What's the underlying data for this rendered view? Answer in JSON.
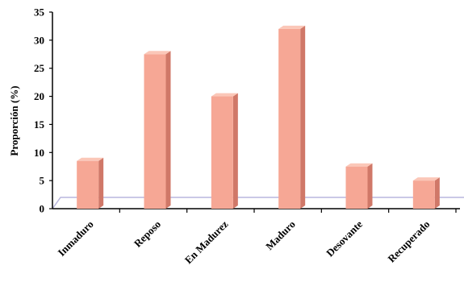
{
  "chart_data": {
    "type": "bar",
    "title": "",
    "xlabel": "",
    "ylabel": "Proporción (%)",
    "categories": [
      "Inmaduro",
      "Reposo",
      "En Madurez",
      "Maduro",
      "Desovante",
      "Recuperado"
    ],
    "values": [
      8.5,
      27.5,
      20,
      32,
      7.5,
      5
    ],
    "ylim": [
      0,
      35
    ],
    "yticks": [
      "0",
      "5",
      "10",
      "15",
      "20",
      "25",
      "30",
      "35"
    ],
    "grid": false,
    "legend": "none",
    "colors": {
      "bar_front": "#f6a795",
      "bar_side": "#d07868",
      "bar_top": "#fbc7b8",
      "floor_line": "#b9b6dd",
      "axis": "#000000"
    }
  }
}
